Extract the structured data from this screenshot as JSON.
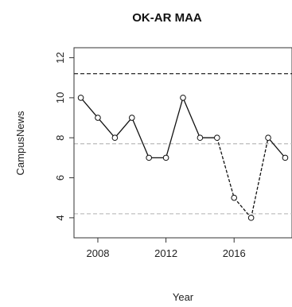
{
  "chart_data": {
    "type": "line",
    "title": "OK-AR MAA",
    "xlabel": "Year",
    "ylabel": "CampusNews",
    "x": [
      2007,
      2008,
      2009,
      2010,
      2011,
      2012,
      2013,
      2014,
      2015,
      2016,
      2017,
      2018,
      2019
    ],
    "series": [
      {
        "values": [
          10,
          9,
          8,
          9,
          7,
          7,
          10,
          8,
          8,
          5,
          4,
          8,
          7
        ]
      }
    ],
    "segment_styles": [
      "solid",
      "solid",
      "solid",
      "solid",
      "solid",
      "solid",
      "solid",
      "solid",
      "dashed",
      "dashed",
      "dashed",
      "solid"
    ],
    "reference_lines": [
      {
        "y": 11.2,
        "color": "#111111",
        "style": "dashed"
      },
      {
        "y": 7.7,
        "color": "#bbbbbb",
        "style": "dashed"
      },
      {
        "y": 4.2,
        "color": "#bbbbbb",
        "style": "dashed"
      }
    ],
    "xlim": [
      2006.6,
      2019.4
    ],
    "ylim": [
      3,
      12.5
    ],
    "xticks": [
      2008,
      2012,
      2016
    ],
    "yticks": [
      4,
      6,
      8,
      10,
      12
    ],
    "grid": false,
    "legend": "none"
  }
}
